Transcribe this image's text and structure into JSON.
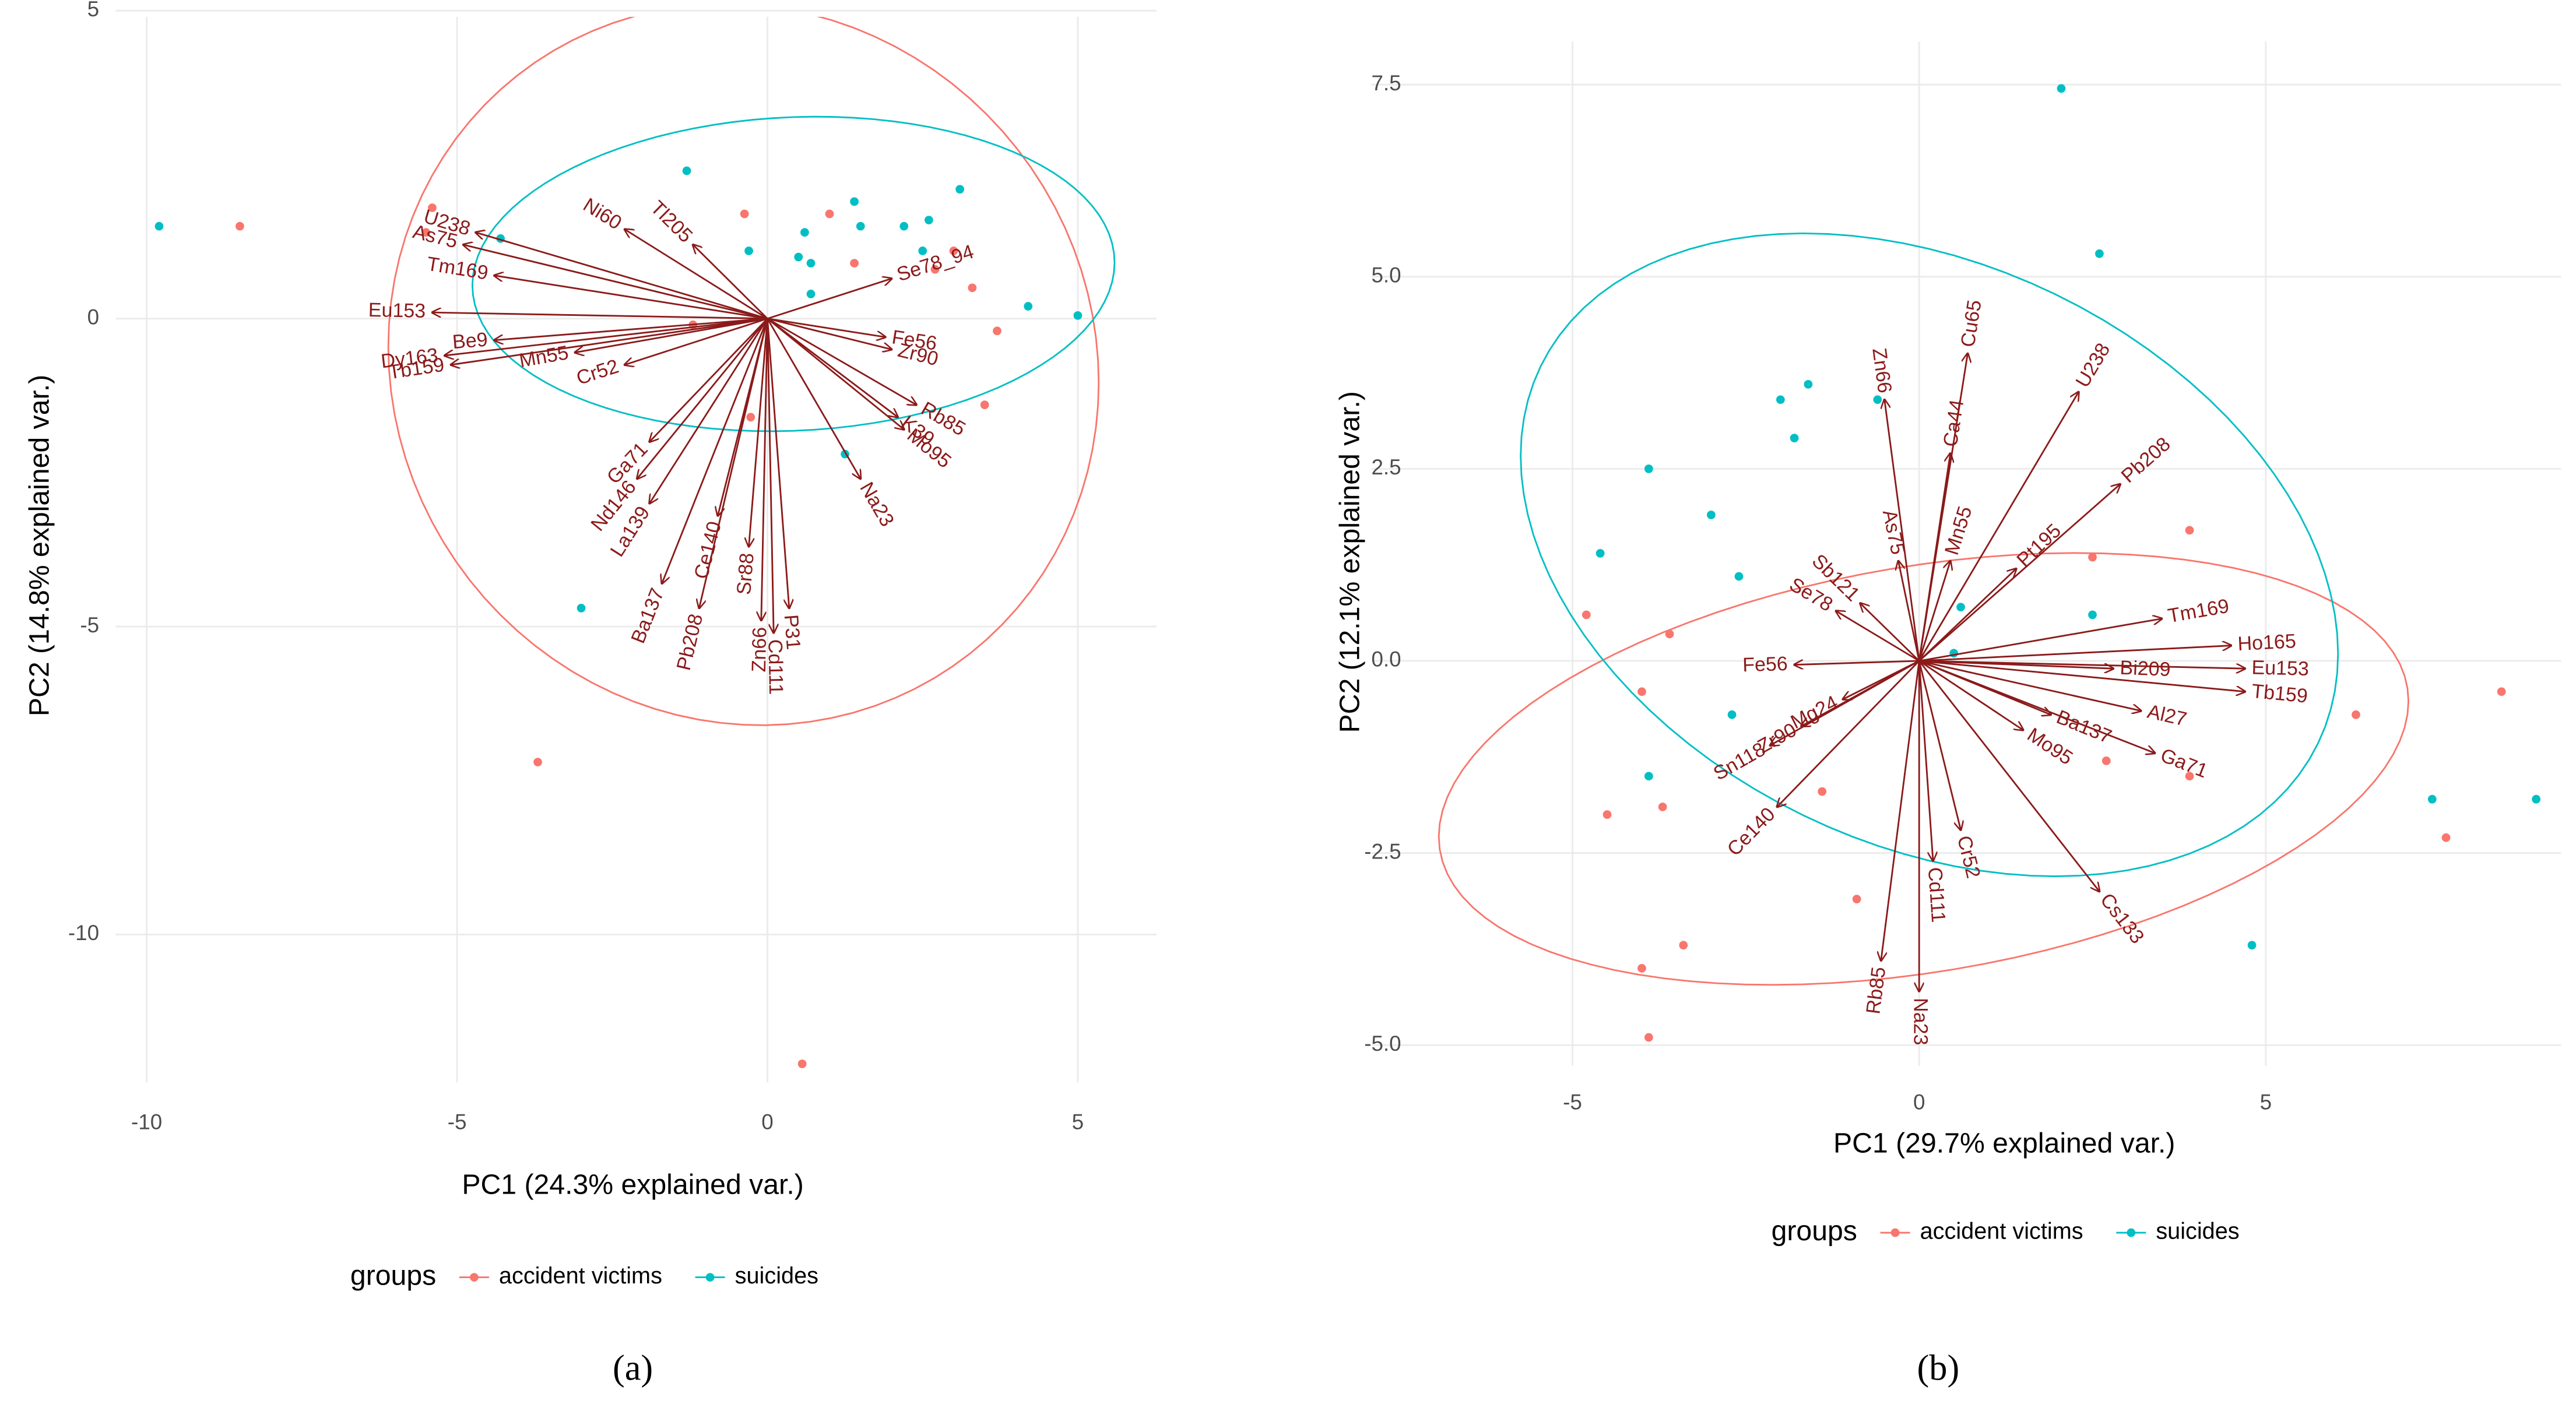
{
  "chart_data": [
    {
      "type": "biplot",
      "label": "(a)",
      "xlabel": "PC1 (24.3% explained var.)",
      "ylabel": "PC2 (14.8% explained var.)",
      "xlim": [
        -10.5,
        6.27
      ],
      "ylim": [
        -12.4,
        4.9
      ],
      "xticks": [
        -10,
        -5,
        0,
        5
      ],
      "yticks": [
        -10,
        -5,
        0,
        5
      ],
      "grid": true,
      "legend_title": "groups",
      "series": [
        {
          "name": "accident victims",
          "color": "#f8766d",
          "x": [
            -8.5,
            -5.4,
            -5.5,
            -3.7,
            0.56,
            -0.37,
            1.0,
            1.4,
            3.0,
            3.3,
            3.5,
            3.7,
            2.7,
            -1.2,
            -0.27
          ],
          "y": [
            1.5,
            1.8,
            1.4,
            -7.2,
            -12.1,
            1.7,
            1.7,
            0.9,
            1.1,
            0.5,
            -1.4,
            -0.2,
            0.8,
            -0.1,
            -1.6
          ]
        },
        {
          "name": "suicides",
          "color": "#00bfc4",
          "x": [
            -9.8,
            -4.3,
            -1.3,
            -0.3,
            0.6,
            1.4,
            1.5,
            0.5,
            0.7,
            0.7,
            2.2,
            2.6,
            3.1,
            2.5,
            4.2,
            5.0,
            -3.0,
            1.25
          ],
          "y": [
            1.5,
            1.3,
            2.4,
            1.1,
            1.4,
            1.9,
            1.5,
            1.0,
            0.9,
            0.4,
            1.5,
            1.6,
            2.1,
            1.1,
            0.2,
            0.05,
            -4.7,
            -2.2
          ]
        }
      ],
      "arrow_color": "#8b1a1a",
      "loadings": {
        "names": [
          "U238",
          "As75",
          "Tm169",
          "Eu153",
          "Dy163",
          "Tb159",
          "Be9",
          "Ni60",
          "Tl205",
          "Mn55",
          "Cr52",
          "Ga71",
          "Nd146",
          "La139",
          "Ce140",
          "Ba137",
          "Pb208",
          "Sr88",
          "Zn66",
          "P31",
          "Cd111",
          "Na23",
          "K39",
          "Mo95",
          "Rb85",
          "Fe56",
          "Zr90",
          "Se78_94"
        ],
        "x": [
          -4.7,
          -4.9,
          -4.4,
          -5.4,
          -5.2,
          -5.1,
          -4.4,
          -2.3,
          -1.2,
          -3.1,
          -2.3,
          -1.9,
          -2.1,
          -1.9,
          -0.8,
          -1.7,
          -1.1,
          -0.3,
          -0.1,
          0.35,
          0.1,
          1.5,
          2.1,
          2.2,
          2.4,
          1.9,
          2.0,
          2.0
        ],
        "y": [
          1.4,
          1.2,
          0.7,
          0.1,
          -0.6,
          -0.75,
          -0.35,
          1.45,
          1.2,
          -0.55,
          -0.75,
          -2.0,
          -2.6,
          -3.0,
          -3.2,
          -4.3,
          -4.7,
          -3.7,
          -4.9,
          -4.7,
          -5.1,
          -2.6,
          -1.6,
          -1.8,
          -1.4,
          -0.3,
          -0.5,
          0.65
        ]
      }
    },
    {
      "type": "biplot",
      "label": "(b)",
      "xlabel": "PC1 (29.7% explained var.)",
      "ylabel": "PC2 (12.1% explained var.)",
      "xlim": [
        -7.9,
        9.26
      ],
      "ylim": [
        -5.27,
        8.06
      ],
      "xticks": [
        -5,
        0,
        5
      ],
      "yticks": [
        {
          "value": -5,
          "label": "-5.0"
        },
        -2.5,
        {
          "value": 0,
          "label": "0.0"
        },
        2.5,
        {
          "value": 5,
          "label": "5.0"
        },
        7.5
      ],
      "grid": true,
      "legend_title": "groups",
      "series": [
        {
          "name": "accident victims",
          "color": "#f8766d",
          "x": [
            -4.8,
            -3.6,
            -4.0,
            -4.5,
            -3.7,
            -3.4,
            -4.0,
            -3.9,
            -1.4,
            -0.9,
            2.5,
            3.9,
            2.7,
            3.9,
            6.3,
            7.6,
            8.4
          ],
          "y": [
            0.6,
            0.35,
            -0.4,
            -2.0,
            -1.9,
            -3.7,
            -4.0,
            -4.9,
            -1.7,
            -3.1,
            1.35,
            1.7,
            -1.3,
            -1.5,
            -0.7,
            -2.3,
            -0.4
          ]
        },
        {
          "name": "suicides",
          "color": "#00bfc4",
          "x": [
            2.05,
            2.6,
            -0.6,
            -1.6,
            -2.0,
            -1.8,
            -3.9,
            -4.6,
            -3.0,
            -2.6,
            -2.7,
            -3.9,
            0.6,
            0.5,
            2.5,
            4.8,
            7.4,
            8.9
          ],
          "y": [
            7.45,
            5.3,
            3.4,
            3.6,
            3.4,
            2.9,
            2.5,
            1.4,
            1.9,
            1.1,
            -0.7,
            -1.5,
            0.7,
            0.1,
            0.6,
            -3.7,
            -1.8,
            -1.8
          ]
        }
      ],
      "arrow_color": "#8b1a1a",
      "loadings": {
        "names": [
          "Zn66",
          "Cu65",
          "U238",
          "Pb208",
          "Ca44",
          "Mn55",
          "Pt195",
          "Tm169",
          "Ho165",
          "Eu153",
          "Tb159",
          "Bi209",
          "Al27",
          "Ga71",
          "Ba137",
          "Mo95",
          "Cs133",
          "Cr52",
          "Cd111",
          "Na23",
          "Rb85",
          "Ce140",
          "Sn118",
          "Zr90",
          "Mg24",
          "Fe56",
          "Se78",
          "Sb121",
          "As75"
        ],
        "x": [
          -0.5,
          0.7,
          2.3,
          2.9,
          0.45,
          0.45,
          1.4,
          3.5,
          4.5,
          4.7,
          4.7,
          2.8,
          3.2,
          3.4,
          1.9,
          1.5,
          2.6,
          0.6,
          0.2,
          0.0,
          -0.55,
          -2.05,
          -2.15,
          -1.7,
          -1.1,
          -1.8,
          -1.2,
          -0.85,
          -0.3
        ],
        "y": [
          3.4,
          4.0,
          3.5,
          2.3,
          2.7,
          1.3,
          1.2,
          0.55,
          0.2,
          -0.1,
          -0.4,
          -0.1,
          -0.65,
          -1.2,
          -0.7,
          -0.9,
          -3.0,
          -2.2,
          -2.6,
          -4.3,
          -3.9,
          -1.9,
          -1.1,
          -0.85,
          -0.5,
          -0.05,
          0.65,
          0.75,
          1.3
        ]
      }
    }
  ]
}
